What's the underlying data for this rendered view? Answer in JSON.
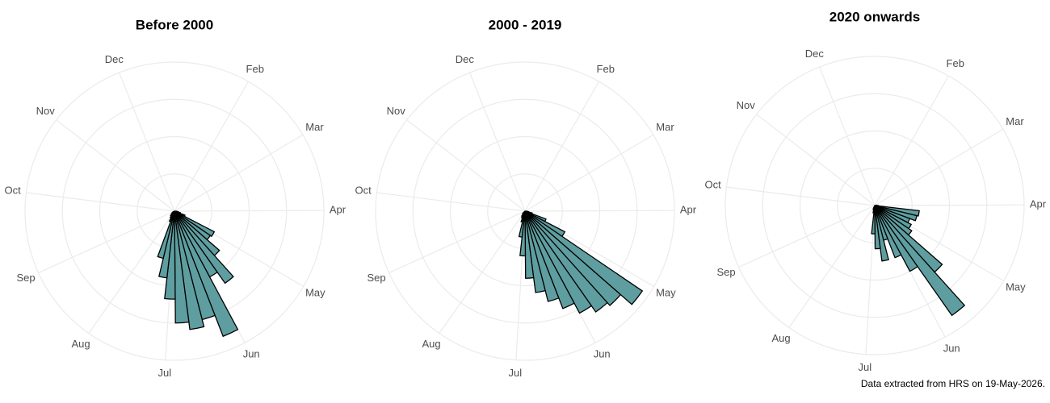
{
  "caption": "Data extracted from HRS on 19-May-2026.",
  "chart_data": [
    {
      "type": "polar_histogram",
      "title": "Before 2000",
      "bins": [
        0,
        7,
        14,
        21,
        28,
        35,
        42,
        49,
        56,
        63,
        70,
        77,
        84,
        91,
        98,
        105,
        112,
        119,
        126,
        133,
        140,
        147,
        154,
        161,
        168,
        175,
        182,
        189,
        196,
        203,
        210,
        217,
        224,
        231,
        238,
        245,
        252,
        259,
        266,
        273,
        280,
        287,
        294,
        301,
        308,
        315,
        322,
        329,
        336,
        343,
        350,
        357,
        364
      ],
      "values": [
        0,
        0,
        0,
        0,
        0,
        0,
        0,
        0,
        0,
        0,
        0,
        0,
        0,
        3,
        5,
        8,
        15,
        60,
        58,
        80,
        118,
        100,
        180,
        150,
        160,
        150,
        118,
        90,
        65,
        15,
        10,
        8,
        6,
        4,
        3,
        0,
        0,
        0,
        0,
        0,
        0,
        0,
        0,
        0,
        0,
        0,
        0,
        0,
        0,
        0,
        0,
        0
      ],
      "color": "#5f9ea0",
      "xlim": [
        0,
        365
      ],
      "xticks": [
        {
          "value": 30,
          "label": "Feb"
        },
        {
          "value": 60,
          "label": "Mar"
        },
        {
          "value": 91,
          "label": "Apr"
        },
        {
          "value": 122,
          "label": "May"
        },
        {
          "value": 154,
          "label": "Jun"
        },
        {
          "value": 186,
          "label": "Jul"
        },
        {
          "value": 218,
          "label": "Aug"
        },
        {
          "value": 249,
          "label": "Sep"
        },
        {
          "value": 281,
          "label": "Oct"
        },
        {
          "value": 312,
          "label": "Nov"
        },
        {
          "value": 343,
          "label": "Dec"
        }
      ],
      "ylim": [
        0,
        200
      ],
      "yticks": [
        50,
        100,
        150,
        200
      ],
      "grid": true
    },
    {
      "type": "polar_histogram",
      "title": "2000 - 2019",
      "bins": [
        0,
        7,
        14,
        21,
        28,
        35,
        42,
        49,
        56,
        63,
        70,
        77,
        84,
        91,
        98,
        105,
        112,
        119,
        126,
        133,
        140,
        147,
        154,
        161,
        168,
        175,
        182,
        189,
        196,
        203,
        210,
        217,
        224,
        231,
        238,
        245,
        252,
        259,
        266,
        273,
        280,
        287,
        294,
        301,
        308,
        315,
        322,
        329,
        336,
        343,
        350,
        357,
        364
      ],
      "values": [
        0,
        0,
        0,
        0,
        0,
        0,
        0,
        0,
        0,
        0,
        0,
        0,
        0,
        3,
        5,
        10,
        30,
        60,
        190,
        170,
        165,
        155,
        140,
        125,
        110,
        90,
        60,
        35,
        15,
        10,
        8,
        5,
        4,
        0,
        0,
        0,
        0,
        0,
        0,
        0,
        0,
        0,
        0,
        0,
        0,
        0,
        0,
        0,
        0,
        0,
        0,
        0
      ],
      "color": "#5f9ea0",
      "xlim": [
        0,
        365
      ],
      "xticks": [
        {
          "value": 30,
          "label": "Feb"
        },
        {
          "value": 60,
          "label": "Mar"
        },
        {
          "value": 91,
          "label": "Apr"
        },
        {
          "value": 122,
          "label": "May"
        },
        {
          "value": 154,
          "label": "Jun"
        },
        {
          "value": 186,
          "label": "Jul"
        },
        {
          "value": 218,
          "label": "Aug"
        },
        {
          "value": 249,
          "label": "Sep"
        },
        {
          "value": 281,
          "label": "Oct"
        },
        {
          "value": 312,
          "label": "Nov"
        },
        {
          "value": 343,
          "label": "Dec"
        }
      ],
      "ylim": [
        0,
        200
      ],
      "yticks": [
        50,
        100,
        150,
        200
      ],
      "grid": true
    },
    {
      "type": "polar_histogram",
      "title": "2020 onwards",
      "bins": [
        0,
        7,
        14,
        21,
        28,
        35,
        42,
        49,
        56,
        63,
        70,
        77,
        84,
        91,
        98,
        105,
        112,
        119,
        126,
        133,
        140,
        147,
        154,
        161,
        168,
        175,
        182,
        189,
        196,
        203,
        210,
        217,
        224,
        231,
        238,
        245,
        252,
        259,
        266,
        273,
        280,
        287,
        294,
        301,
        308,
        315,
        322,
        329,
        336,
        343,
        350,
        357,
        364
      ],
      "values": [
        0,
        0,
        0,
        0,
        0,
        0,
        0,
        0,
        0,
        0,
        0,
        0,
        3,
        5,
        60,
        58,
        50,
        55,
        60,
        120,
        180,
        100,
        75,
        48,
        75,
        58,
        38,
        10,
        6,
        4,
        0,
        0,
        0,
        0,
        0,
        0,
        0,
        0,
        0,
        0,
        0,
        0,
        0,
        0,
        0,
        0,
        0,
        0,
        0,
        0,
        0,
        0
      ],
      "color": "#5f9ea0",
      "xlim": [
        0,
        365
      ],
      "xticks": [
        {
          "value": 30,
          "label": "Feb"
        },
        {
          "value": 60,
          "label": "Mar"
        },
        {
          "value": 91,
          "label": "Apr"
        },
        {
          "value": 122,
          "label": "May"
        },
        {
          "value": 154,
          "label": "Jun"
        },
        {
          "value": 186,
          "label": "Jul"
        },
        {
          "value": 218,
          "label": "Aug"
        },
        {
          "value": 249,
          "label": "Sep"
        },
        {
          "value": 281,
          "label": "Oct"
        },
        {
          "value": 312,
          "label": "Nov"
        },
        {
          "value": 343,
          "label": "Dec"
        }
      ],
      "ylim": [
        0,
        200
      ],
      "yticks": [
        50,
        100,
        150,
        200
      ],
      "grid": true
    }
  ]
}
